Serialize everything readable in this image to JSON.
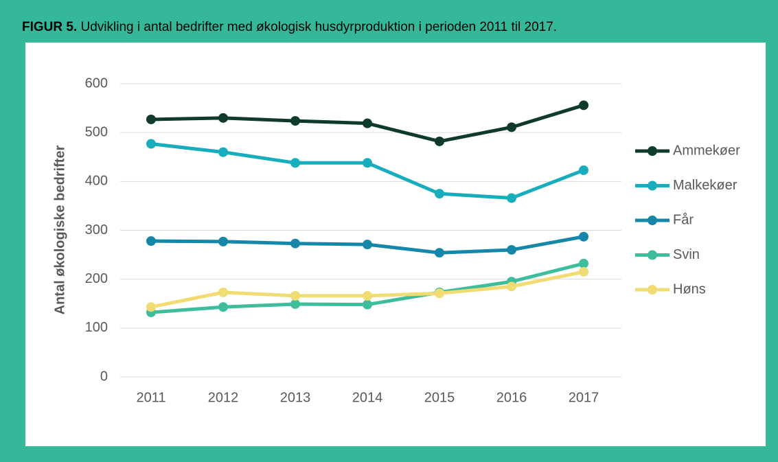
{
  "chart_data": {
    "type": "line",
    "label": "FIGUR 5.",
    "title": "Udvikling i antal bedrifter med økologisk husdyrproduktion i perioden 2011 til 2017.",
    "ylabel": "Antal økologiske bedrifter",
    "categories": [
      "2011",
      "2012",
      "2013",
      "2014",
      "2015",
      "2016",
      "2017"
    ],
    "series": [
      {
        "name": "Ammekøer",
        "color": "#0f3b2f",
        "values": [
          527,
          530,
          524,
          519,
          482,
          511,
          556
        ]
      },
      {
        "name": "Malkekøer",
        "color": "#17adbd",
        "values": [
          477,
          460,
          438,
          438,
          375,
          366,
          423
        ]
      },
      {
        "name": "Får",
        "color": "#1587a8",
        "values": [
          278,
          277,
          273,
          271,
          254,
          260,
          287
        ]
      },
      {
        "name": "Svin",
        "color": "#3dbd9c",
        "values": [
          132,
          143,
          149,
          148,
          173,
          195,
          232
        ]
      },
      {
        "name": "Høns",
        "color": "#f1dc74",
        "values": [
          143,
          173,
          166,
          166,
          171,
          185,
          215
        ]
      }
    ],
    "ylim": [
      0,
      600
    ],
    "yticks": [
      0,
      100,
      200,
      300,
      400,
      500,
      600
    ],
    "grid": true,
    "legend": "right"
  }
}
